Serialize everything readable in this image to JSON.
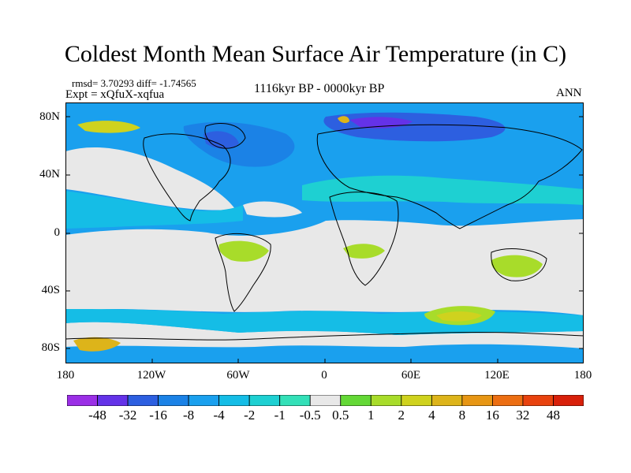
{
  "title": "Coldest Month Mean Surface Air Temperature (in C)",
  "stats": "rmsd= 3.70293 diff= -1.74565",
  "experiment": "Expt = xQfuX-xqfua",
  "period": "1116kyr BP - 0000kyr BP",
  "season": "ANN",
  "lat_labels": [
    "80N",
    "40N",
    "0",
    "40S",
    "80S"
  ],
  "lon_labels": [
    "180",
    "120W",
    "60W",
    "0",
    "60E",
    "120E",
    "180"
  ],
  "colorbar": {
    "labels": [
      "-48",
      "-32",
      "-16",
      "-8",
      "-4",
      "-2",
      "-1",
      "-0.5",
      "0.5",
      "1",
      "2",
      "4",
      "8",
      "16",
      "32",
      "48"
    ],
    "colors": [
      "#9b2fe6",
      "#6432e8",
      "#2d5fe0",
      "#1b82e6",
      "#1aa0ee",
      "#15bde6",
      "#1ed0d2",
      "#33e0b8",
      "#e8e8e8",
      "#64d836",
      "#a8dc2a",
      "#cfd21e",
      "#ddb41a",
      "#e79614",
      "#ec6e12",
      "#e8420e",
      "#d8200a"
    ]
  },
  "map_colors": {
    "ocean_base": "#1aa0ee",
    "neutral": "#e8e8e8",
    "cool_light": "#15bde6",
    "cool_teal": "#1ed0d2",
    "cool_dark": "#1b82e6",
    "cold": "#2d5fe0",
    "colder": "#6432e8",
    "warm_green": "#64d836",
    "warm_lime": "#a8dc2a",
    "warm_yellow": "#cfd21e",
    "warm_orange": "#ddb41a"
  }
}
